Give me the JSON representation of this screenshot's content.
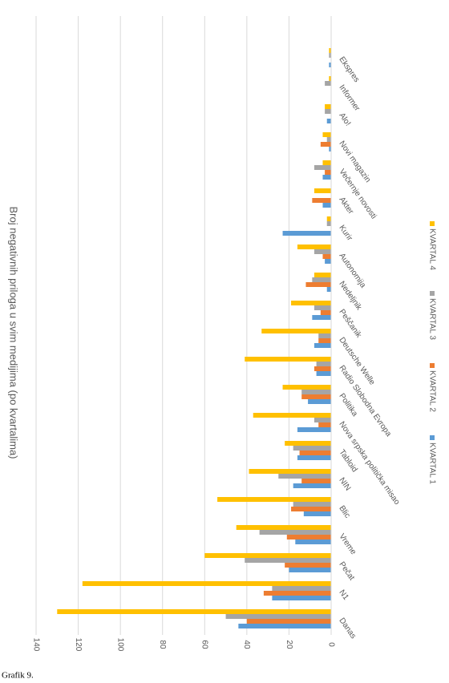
{
  "chart_data": {
    "type": "bar",
    "title": "Broj negativnih priloga u svim medijima (po kvartalima)",
    "categories": [
      "Danas",
      "N1",
      "Pečat",
      "Vreme",
      "Blic",
      "NIN",
      "Tabloid",
      "Nova srpska politička misao",
      "Politika",
      "Radio Slobodna Evropa",
      "Deutsche Welle",
      "Peščanik",
      "Nedeljnik",
      "Autonomija",
      "Kurir",
      "Akter",
      "Večernje novosti",
      "Novi magazin",
      "Alo!",
      "Informer",
      "Ekspres"
    ],
    "series": [
      {
        "name": "KVARTAL 1",
        "color": "#5b9bd5",
        "values": [
          44,
          28,
          20,
          17,
          13,
          18,
          16,
          16,
          11,
          7,
          8,
          9,
          2,
          3,
          23,
          4,
          4,
          1,
          2,
          0,
          1
        ]
      },
      {
        "name": "KVARTAL 2",
        "color": "#ed7d31",
        "values": [
          40,
          32,
          22,
          21,
          19,
          14,
          15,
          6,
          14,
          8,
          6,
          5,
          12,
          4,
          0,
          9,
          3,
          5,
          0,
          0,
          0
        ]
      },
      {
        "name": "KVARTAL 3",
        "color": "#a5a5a5",
        "values": [
          50,
          28,
          41,
          34,
          18,
          25,
          18,
          8,
          14,
          7,
          6,
          8,
          9,
          8,
          2,
          0,
          8,
          2,
          3,
          3,
          1
        ]
      },
      {
        "name": "KVARTAL 4",
        "color": "#ffc000",
        "values": [
          130,
          118,
          60,
          45,
          54,
          39,
          22,
          37,
          23,
          41,
          33,
          19,
          8,
          16,
          2,
          8,
          4,
          4,
          3,
          1,
          1
        ]
      }
    ],
    "ylim": [
      0,
      140
    ],
    "yticks": [
      0,
      20,
      40,
      60,
      80,
      100,
      120,
      140
    ],
    "grid": true
  },
  "caption": "Grafik 9."
}
